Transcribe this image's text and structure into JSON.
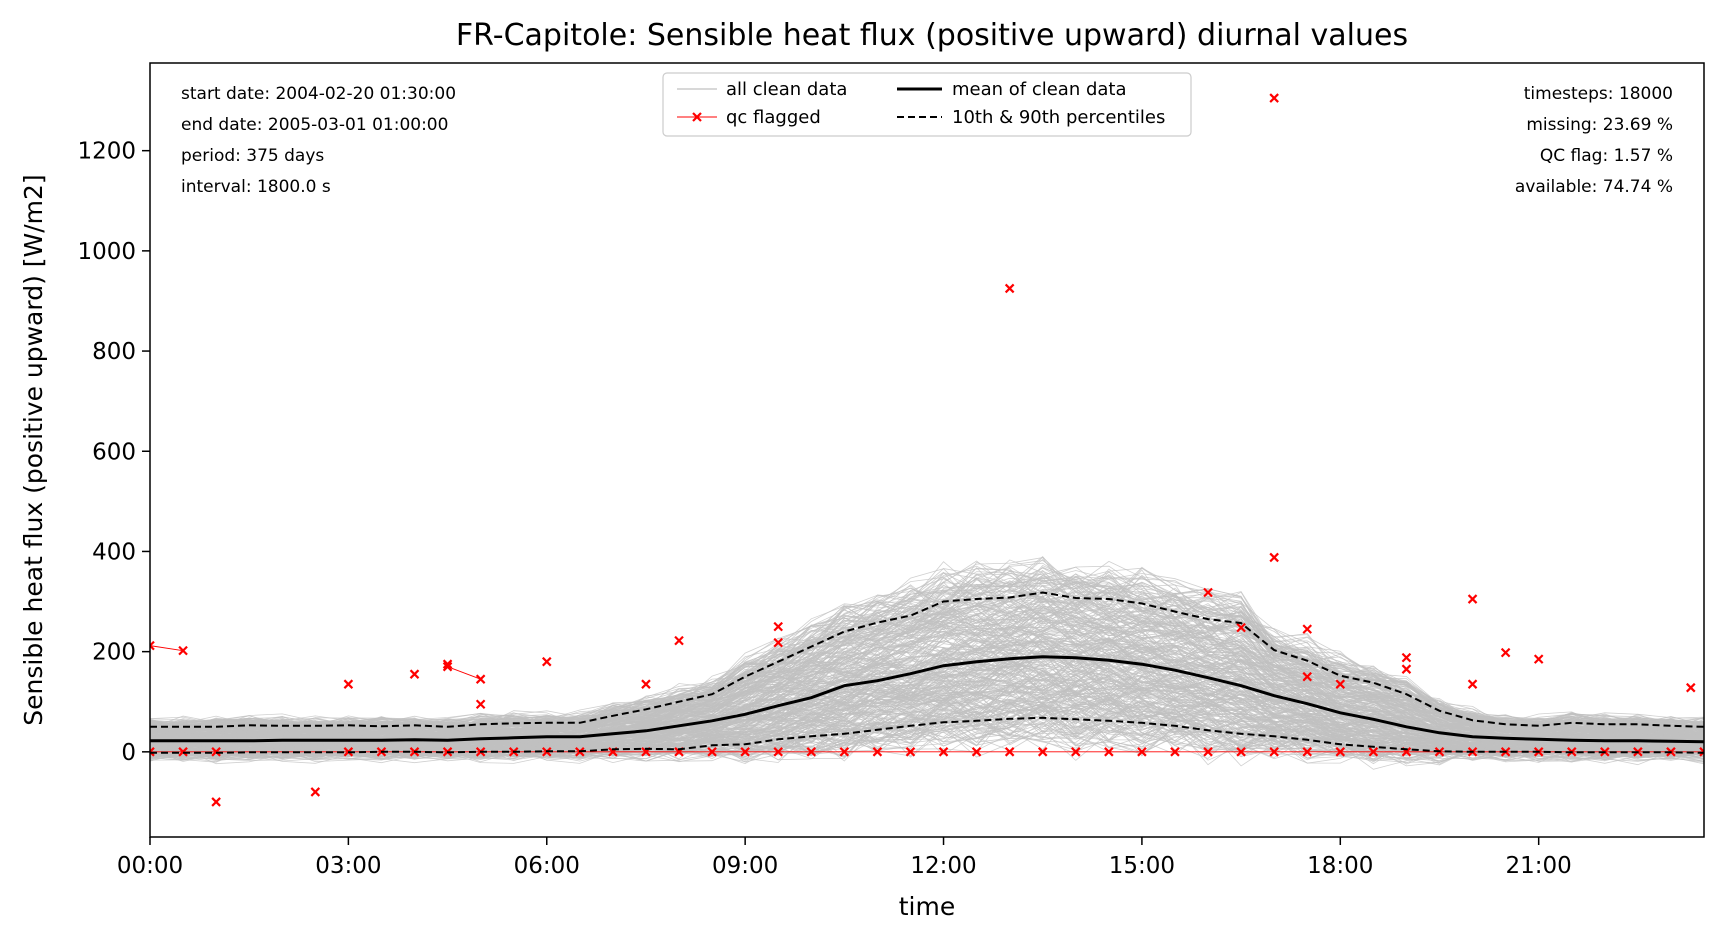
{
  "chart_data": {
    "type": "line",
    "title": "FR-Capitole: Sensible heat flux (positive upward) diurnal values",
    "xlabel": "time",
    "ylabel": "Sensible heat flux (positive upward) [W/m2]",
    "xlim_hours": [
      0,
      23.5
    ],
    "ylim": [
      -170,
      1375
    ],
    "x_ticks": [
      {
        "hour": 0,
        "label": "00:00"
      },
      {
        "hour": 3,
        "label": "03:00"
      },
      {
        "hour": 6,
        "label": "06:00"
      },
      {
        "hour": 9,
        "label": "09:00"
      },
      {
        "hour": 12,
        "label": "12:00"
      },
      {
        "hour": 15,
        "label": "15:00"
      },
      {
        "hour": 18,
        "label": "18:00"
      },
      {
        "hour": 21,
        "label": "21:00"
      }
    ],
    "y_ticks": [
      {
        "value": 0,
        "label": "0"
      },
      {
        "value": 200,
        "label": "200"
      },
      {
        "value": 400,
        "label": "400"
      },
      {
        "value": 600,
        "label": "600"
      },
      {
        "value": 800,
        "label": "800"
      },
      {
        "value": 1000,
        "label": "1000"
      },
      {
        "value": 1200,
        "label": "1200"
      }
    ],
    "x": [
      0,
      0.5,
      1,
      1.5,
      2,
      2.5,
      3,
      3.5,
      4,
      4.5,
      5,
      5.5,
      6,
      6.5,
      7,
      7.5,
      8,
      8.5,
      9,
      9.5,
      10,
      10.5,
      11,
      11.5,
      12,
      12.5,
      13,
      13.5,
      14,
      14.5,
      15,
      15.5,
      16,
      16.5,
      17,
      17.5,
      18,
      18.5,
      19,
      19.5,
      20,
      20.5,
      21,
      21.5,
      22,
      22.5,
      23,
      23.5
    ],
    "series": [
      {
        "name": "mean of clean data",
        "values": [
          22,
          22,
          22,
          22,
          23,
          23,
          23,
          23,
          24,
          23,
          26,
          28,
          30,
          30,
          36,
          42,
          52,
          62,
          75,
          92,
          108,
          132,
          142,
          156,
          172,
          180,
          186,
          190,
          188,
          183,
          175,
          163,
          148,
          132,
          112,
          96,
          78,
          65,
          50,
          38,
          30,
          27,
          25,
          23,
          22,
          22,
          21,
          20
        ]
      },
      {
        "name": "10th & 90th percentiles",
        "p90": [
          50,
          50,
          50,
          53,
          52,
          52,
          53,
          51,
          53,
          50,
          55,
          57,
          58,
          58,
          72,
          85,
          100,
          115,
          150,
          180,
          210,
          240,
          258,
          272,
          300,
          305,
          308,
          318,
          307,
          305,
          296,
          280,
          265,
          257,
          203,
          182,
          152,
          138,
          115,
          82,
          63,
          55,
          52,
          58,
          55,
          55,
          52,
          50
        ],
        "p10": [
          -2,
          -2,
          -2,
          -1,
          -1,
          -1,
          -1,
          0,
          0,
          -1,
          0,
          0,
          1,
          1,
          5,
          6,
          5,
          13,
          15,
          25,
          31,
          36,
          44,
          52,
          59,
          62,
          66,
          68,
          65,
          62,
          58,
          52,
          43,
          36,
          31,
          24,
          15,
          10,
          5,
          1,
          0,
          0,
          0,
          -1,
          -1,
          -1,
          -1,
          -2
        ]
      }
    ],
    "qc_flagged": {
      "name": "qc flagged",
      "points": [
        [
          0,
          212
        ],
        [
          0.5,
          202
        ],
        [
          1,
          -100
        ],
        [
          2.5,
          -80
        ],
        [
          3,
          135
        ],
        [
          4,
          155
        ],
        [
          4.5,
          175
        ],
        [
          4.5,
          170
        ],
        [
          5,
          145
        ],
        [
          5,
          95
        ],
        [
          6,
          180
        ],
        [
          7.5,
          135
        ],
        [
          8,
          222
        ],
        [
          9.5,
          250
        ],
        [
          9.5,
          218
        ],
        [
          13,
          925
        ],
        [
          16,
          318
        ],
        [
          16.5,
          248
        ],
        [
          17,
          388
        ],
        [
          17,
          1305
        ],
        [
          17.5,
          245
        ],
        [
          17.5,
          150
        ],
        [
          18,
          135
        ],
        [
          19,
          188
        ],
        [
          19,
          165
        ],
        [
          20,
          305
        ],
        [
          20,
          135
        ],
        [
          20.5,
          198
        ],
        [
          21,
          185
        ],
        [
          23.3,
          128
        ],
        [
          0,
          0
        ],
        [
          0.5,
          0
        ],
        [
          1,
          0
        ],
        [
          3,
          0
        ],
        [
          3.5,
          0
        ],
        [
          4,
          0
        ],
        [
          4.5,
          0
        ],
        [
          5,
          0
        ],
        [
          5.5,
          0
        ],
        [
          6,
          0
        ],
        [
          6.5,
          0
        ],
        [
          7,
          0
        ],
        [
          7.5,
          0
        ],
        [
          8,
          0
        ],
        [
          8.5,
          0
        ],
        [
          9,
          0
        ],
        [
          9.5,
          0
        ],
        [
          10,
          0
        ],
        [
          10.5,
          0
        ],
        [
          11,
          0
        ],
        [
          11.5,
          0
        ],
        [
          12,
          0
        ],
        [
          12.5,
          0
        ],
        [
          13,
          0
        ],
        [
          13.5,
          0
        ],
        [
          14,
          0
        ],
        [
          14.5,
          0
        ],
        [
          15,
          0
        ],
        [
          15.5,
          0
        ],
        [
          16,
          0
        ],
        [
          16.5,
          0
        ],
        [
          17,
          0
        ],
        [
          17.5,
          0
        ],
        [
          18,
          0
        ],
        [
          18.5,
          0
        ],
        [
          19,
          0
        ],
        [
          19.5,
          0
        ],
        [
          20,
          0
        ],
        [
          20.5,
          0
        ],
        [
          21,
          0
        ],
        [
          21.5,
          0
        ],
        [
          22,
          0
        ],
        [
          22.5,
          0
        ],
        [
          23,
          0
        ],
        [
          23.5,
          0
        ]
      ]
    },
    "legend": {
      "placement": "upper-center",
      "entries": [
        "all clean data",
        "qc flagged",
        "mean of clean data",
        "10th & 90th percentiles"
      ]
    },
    "info_left": [
      "start date: 2004-02-20 01:30:00",
      "end date: 2005-03-01 01:00:00",
      "period: 375 days",
      "interval: 1800.0 s"
    ],
    "info_right": [
      "timesteps: 18000",
      "missing: 23.69 %",
      "QC flag: 1.57 %",
      "available: 74.74 %"
    ],
    "colors": {
      "clean": "#c0c0c0",
      "qc": "#ff0000",
      "mean": "#000000",
      "percentile": "#000000"
    }
  }
}
